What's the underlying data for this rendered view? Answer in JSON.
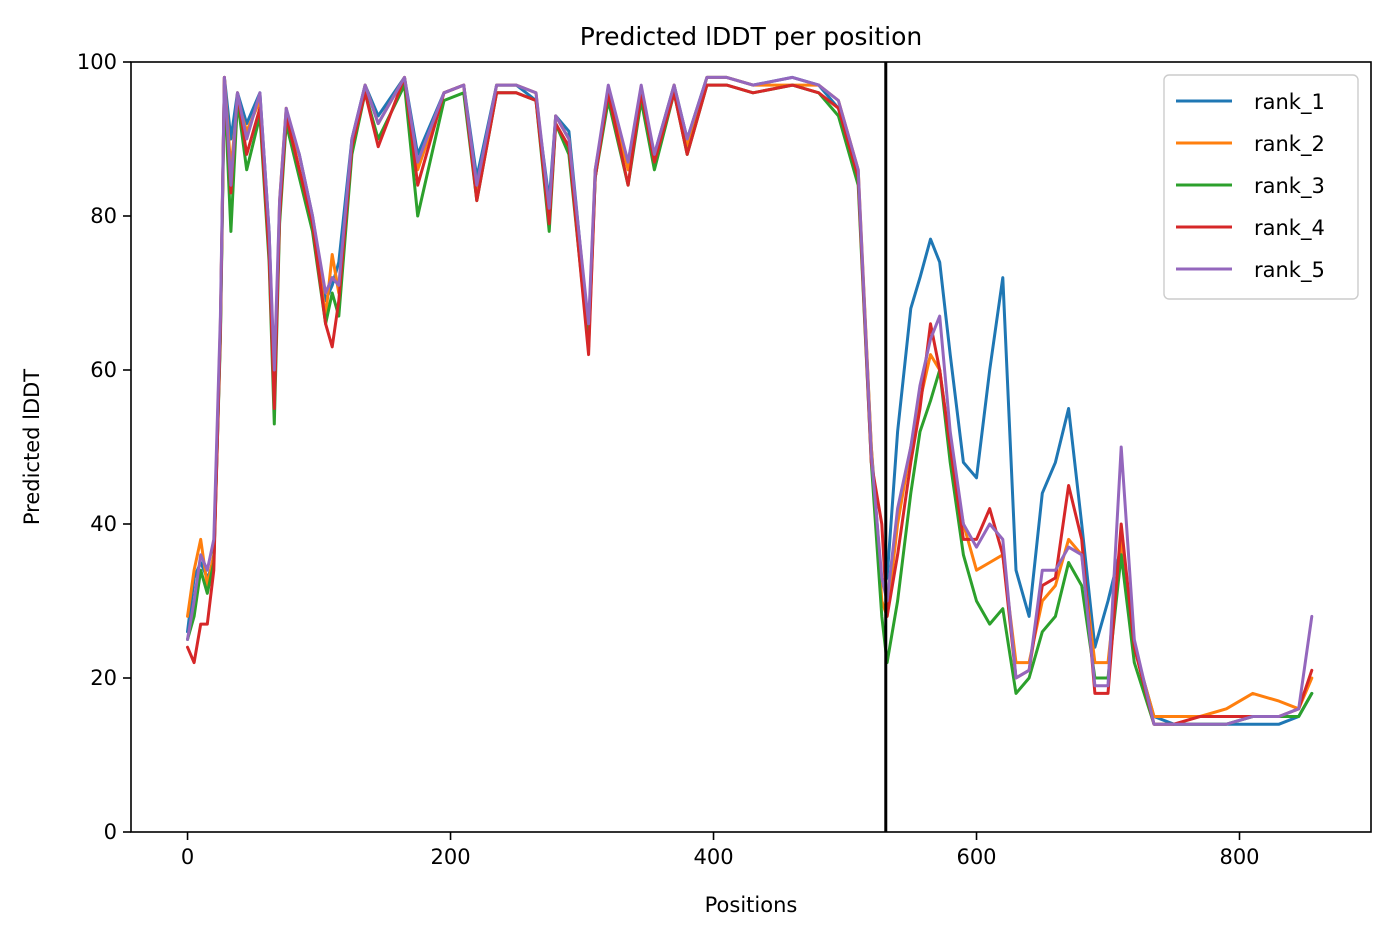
{
  "chart_data": {
    "type": "line",
    "title": "Predicted lDDT per position",
    "xlabel": "Positions",
    "ylabel": "Predicted lDDT",
    "xlim": [
      -43,
      900
    ],
    "ylim": [
      0,
      100
    ],
    "xticks": [
      0,
      200,
      400,
      600,
      800
    ],
    "yticks": [
      0,
      20,
      40,
      60,
      80,
      100
    ],
    "grid": false,
    "legend_position": "top-right",
    "vline_x": 531,
    "vline_color": "#000000",
    "series": [
      {
        "name": "rank_1",
        "color": "#1f77b4",
        "x": [
          0,
          5,
          10,
          15,
          20,
          25,
          28,
          33,
          38,
          45,
          55,
          62,
          66,
          70,
          75,
          85,
          95,
          105,
          110,
          115,
          125,
          135,
          145,
          165,
          175,
          195,
          210,
          220,
          235,
          250,
          265,
          275,
          280,
          290,
          305,
          310,
          320,
          335,
          345,
          355,
          370,
          380,
          395,
          410,
          430,
          460,
          480,
          495,
          510,
          520,
          528,
          532,
          540,
          550,
          557,
          565,
          572,
          580,
          590,
          600,
          610,
          620,
          630,
          640,
          650,
          660,
          670,
          680,
          690,
          700,
          710,
          720,
          735,
          750,
          770,
          790,
          810,
          830,
          845,
          855
        ],
        "y": [
          26,
          33,
          35,
          33,
          35,
          65,
          98,
          90,
          96,
          92,
          96,
          78,
          58,
          80,
          93,
          88,
          80,
          69,
          71,
          74,
          90,
          97,
          93,
          98,
          88,
          96,
          97,
          85,
          97,
          97,
          95,
          82,
          93,
          91,
          65,
          85,
          96,
          87,
          96,
          88,
          97,
          90,
          98,
          98,
          97,
          98,
          97,
          94,
          85,
          50,
          32,
          33,
          52,
          68,
          72,
          77,
          74,
          62,
          48,
          46,
          60,
          72,
          34,
          28,
          44,
          48,
          55,
          40,
          24,
          30,
          37,
          24,
          15,
          14,
          14,
          14,
          14,
          14,
          15,
          18
        ]
      },
      {
        "name": "rank_2",
        "color": "#ff7f0e",
        "x": [
          0,
          5,
          10,
          15,
          20,
          25,
          28,
          33,
          38,
          45,
          55,
          62,
          66,
          70,
          75,
          85,
          95,
          105,
          110,
          115,
          125,
          135,
          145,
          165,
          175,
          195,
          210,
          220,
          235,
          250,
          265,
          275,
          280,
          290,
          305,
          310,
          320,
          335,
          345,
          355,
          370,
          380,
          395,
          410,
          430,
          460,
          480,
          495,
          510,
          520,
          528,
          532,
          540,
          550,
          557,
          565,
          572,
          580,
          590,
          600,
          610,
          620,
          630,
          640,
          650,
          660,
          670,
          680,
          690,
          700,
          710,
          720,
          735,
          750,
          770,
          790,
          810,
          830,
          845,
          855
        ],
        "y": [
          28,
          34,
          38,
          32,
          36,
          66,
          98,
          86,
          95,
          91,
          95,
          76,
          56,
          82,
          94,
          86,
          79,
          67,
          75,
          70,
          89,
          97,
          92,
          98,
          86,
          96,
          97,
          83,
          97,
          97,
          96,
          80,
          93,
          90,
          64,
          86,
          96,
          86,
          96,
          87,
          97,
          89,
          98,
          98,
          97,
          97,
          97,
          95,
          86,
          50,
          30,
          28,
          40,
          50,
          56,
          62,
          60,
          50,
          40,
          34,
          35,
          36,
          22,
          22,
          30,
          32,
          38,
          36,
          22,
          22,
          38,
          24,
          15,
          15,
          15,
          16,
          18,
          17,
          16,
          20
        ]
      },
      {
        "name": "rank_3",
        "color": "#2ca02c",
        "x": [
          0,
          5,
          10,
          15,
          20,
          25,
          28,
          33,
          38,
          45,
          55,
          62,
          66,
          70,
          75,
          85,
          95,
          105,
          110,
          115,
          125,
          135,
          145,
          165,
          175,
          195,
          210,
          220,
          235,
          250,
          265,
          275,
          280,
          290,
          305,
          310,
          320,
          335,
          345,
          355,
          370,
          380,
          395,
          410,
          430,
          460,
          480,
          495,
          510,
          520,
          528,
          532,
          540,
          550,
          557,
          565,
          572,
          580,
          590,
          600,
          610,
          620,
          630,
          640,
          650,
          660,
          670,
          680,
          690,
          700,
          710,
          720,
          735,
          750,
          770,
          790,
          810,
          830,
          845,
          855
        ],
        "y": [
          25,
          28,
          34,
          31,
          35,
          64,
          97,
          78,
          95,
          86,
          93,
          74,
          53,
          79,
          92,
          85,
          78,
          66,
          70,
          67,
          88,
          96,
          90,
          97,
          80,
          95,
          96,
          82,
          96,
          96,
          95,
          78,
          92,
          88,
          63,
          85,
          95,
          84,
          95,
          86,
          96,
          88,
          97,
          97,
          96,
          97,
          96,
          93,
          84,
          48,
          28,
          22,
          30,
          44,
          52,
          56,
          60,
          48,
          36,
          30,
          27,
          29,
          18,
          20,
          26,
          28,
          35,
          32,
          20,
          20,
          36,
          22,
          14,
          14,
          14,
          14,
          15,
          15,
          15,
          18
        ]
      },
      {
        "name": "rank_4",
        "color": "#d62728",
        "x": [
          0,
          5,
          10,
          15,
          20,
          25,
          28,
          33,
          38,
          45,
          55,
          62,
          66,
          70,
          75,
          85,
          95,
          105,
          110,
          115,
          125,
          135,
          145,
          165,
          175,
          195,
          210,
          220,
          235,
          250,
          265,
          275,
          280,
          290,
          305,
          310,
          320,
          335,
          345,
          355,
          370,
          380,
          395,
          410,
          430,
          460,
          480,
          495,
          510,
          520,
          528,
          532,
          540,
          550,
          557,
          565,
          572,
          580,
          590,
          600,
          610,
          620,
          630,
          640,
          650,
          660,
          670,
          680,
          690,
          700,
          710,
          720,
          735,
          750,
          770,
          790,
          810,
          830,
          845,
          855
        ],
        "y": [
          24,
          22,
          27,
          27,
          34,
          65,
          98,
          83,
          96,
          88,
          94,
          75,
          55,
          80,
          93,
          86,
          79,
          66,
          63,
          69,
          89,
          96,
          89,
          98,
          84,
          96,
          97,
          82,
          96,
          96,
          95,
          79,
          92,
          89,
          62,
          85,
          96,
          84,
          96,
          87,
          96,
          88,
          97,
          97,
          96,
          97,
          96,
          94,
          85,
          48,
          40,
          28,
          36,
          48,
          55,
          66,
          60,
          50,
          38,
          38,
          42,
          36,
          20,
          21,
          32,
          33,
          45,
          38,
          18,
          18,
          40,
          24,
          14,
          14,
          15,
          15,
          15,
          15,
          16,
          21
        ]
      },
      {
        "name": "rank_5",
        "color": "#9467bd",
        "x": [
          0,
          5,
          10,
          15,
          20,
          25,
          28,
          33,
          38,
          45,
          55,
          62,
          66,
          70,
          75,
          85,
          95,
          105,
          110,
          115,
          125,
          135,
          145,
          165,
          175,
          195,
          210,
          220,
          235,
          250,
          265,
          275,
          280,
          290,
          305,
          310,
          320,
          335,
          345,
          355,
          370,
          380,
          395,
          410,
          430,
          460,
          480,
          495,
          510,
          520,
          528,
          532,
          540,
          550,
          557,
          565,
          572,
          580,
          590,
          600,
          610,
          620,
          630,
          640,
          650,
          660,
          670,
          680,
          690,
          700,
          710,
          720,
          735,
          750,
          770,
          790,
          810,
          830,
          845,
          855
        ],
        "y": [
          25,
          30,
          36,
          34,
          38,
          67,
          98,
          84,
          96,
          90,
          96,
          78,
          60,
          82,
          94,
          88,
          80,
          70,
          72,
          71,
          90,
          97,
          92,
          98,
          87,
          96,
          97,
          84,
          97,
          97,
          96,
          81,
          93,
          90,
          66,
          86,
          97,
          87,
          97,
          88,
          97,
          90,
          98,
          98,
          97,
          98,
          97,
          95,
          86,
          49,
          33,
          30,
          42,
          50,
          58,
          64,
          67,
          52,
          40,
          37,
          40,
          38,
          20,
          21,
          34,
          34,
          37,
          36,
          19,
          19,
          50,
          25,
          14,
          14,
          14,
          14,
          15,
          15,
          16,
          28
        ]
      }
    ]
  }
}
